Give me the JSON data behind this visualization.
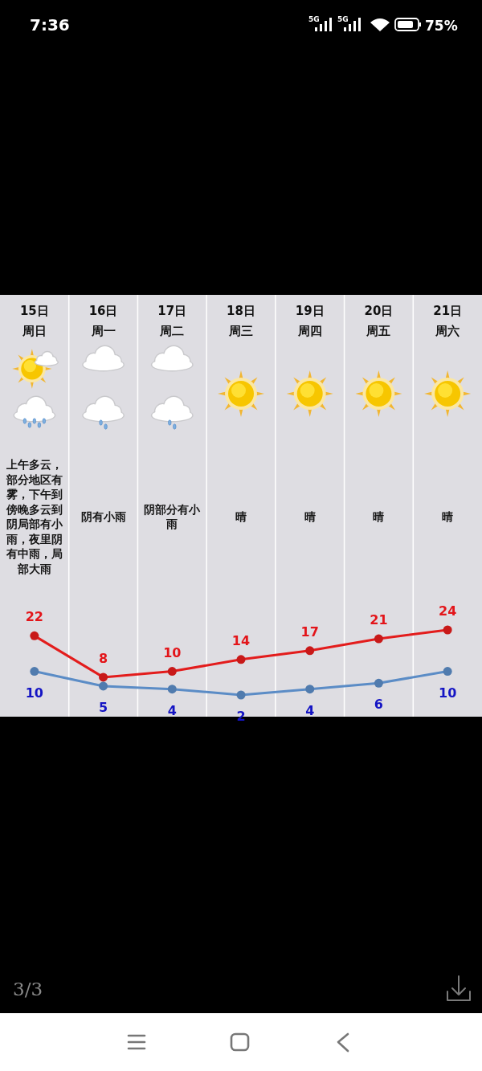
{
  "chart_data": {
    "type": "line",
    "categories": [
      "15日周日",
      "16日周一",
      "17日周二",
      "18日周三",
      "19日周四",
      "20日周五",
      "21日周六"
    ],
    "series": [
      {
        "color": "#e31c1c",
        "values": [
          22,
          8,
          10,
          14,
          17,
          21,
          24
        ]
      },
      {
        "color": "#5b8cc6",
        "values": [
          10,
          5,
          4,
          2,
          4,
          6,
          10
        ]
      }
    ],
    "data_labels": true,
    "marker": "circle",
    "line_style": "solid",
    "annotations": [
      "上午多云，部分地区有雾，下午到傍晚多云到阴局部有小雨，夜里阴有中雨，局部大雨",
      "阴有小雨",
      "阴部分有小雨",
      "晴",
      "晴",
      "晴",
      "晴",
      "7:36",
      "5G",
      "5G",
      "75%",
      "3/3"
    ]
  }
}
